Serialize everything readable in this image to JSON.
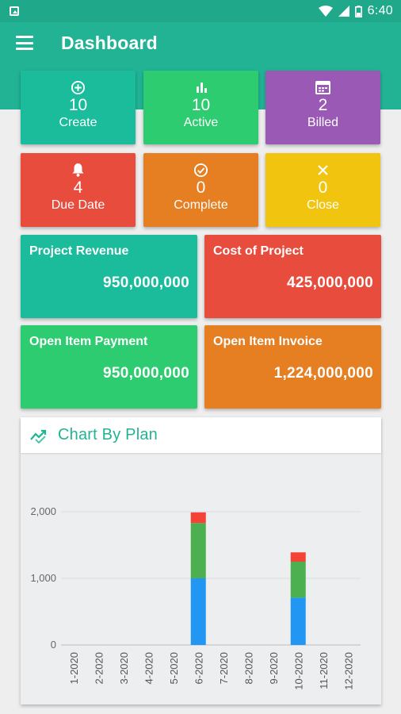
{
  "status_bar": {
    "time": "6:40",
    "icons": [
      "app-notification-icon",
      "wifi-icon",
      "signal-icon",
      "battery-icon"
    ]
  },
  "app_bar": {
    "title": "Dashboard",
    "menu_icon": "hamburger-menu-icon"
  },
  "colors": {
    "primary": "#21b394",
    "teal": "#1abc9c",
    "green": "#2ecc71",
    "purple": "#9b59b6",
    "red": "#e74c3c",
    "orange": "#e67e22",
    "yellow": "#f1c40f"
  },
  "stats": [
    {
      "icon": "add-circle-icon",
      "value": "10",
      "label": "Create"
    },
    {
      "icon": "bar-chart-icon",
      "value": "10",
      "label": "Active"
    },
    {
      "icon": "calendar-icon",
      "value": "2",
      "label": "Billed"
    },
    {
      "icon": "bell-icon",
      "value": "4",
      "label": "Due Date"
    },
    {
      "icon": "check-circle-icon",
      "value": "0",
      "label": "Complete"
    },
    {
      "icon": "close-icon",
      "value": "0",
      "label": "Close"
    }
  ],
  "money": [
    {
      "label": "Project Revenue",
      "value": "950,000,000"
    },
    {
      "label": "Cost of Project",
      "value": "425,000,000"
    },
    {
      "label": "Open Item Payment",
      "value": "950,000,000"
    },
    {
      "label": "Open Item Invoice",
      "value": "1,224,000,000"
    }
  ],
  "chart": {
    "title": "Chart By Plan",
    "icon": "trending-icon"
  },
  "chart_data": {
    "type": "bar",
    "stacked": true,
    "categories": [
      "1-2020",
      "2-2020",
      "3-2020",
      "4-2020",
      "5-2020",
      "6-2020",
      "7-2020",
      "8-2020",
      "9-2020",
      "10-2020",
      "11-2020",
      "12-2020"
    ],
    "series": [
      {
        "color": "#2196f3",
        "values": [
          0,
          0,
          0,
          0,
          0,
          1000,
          0,
          0,
          0,
          710,
          0,
          0
        ]
      },
      {
        "color": "#4caf50",
        "values": [
          0,
          0,
          0,
          0,
          0,
          830,
          0,
          0,
          0,
          540,
          0,
          0
        ]
      },
      {
        "color": "#f44336",
        "values": [
          0,
          0,
          0,
          0,
          0,
          160,
          0,
          0,
          0,
          140,
          0,
          0
        ]
      }
    ],
    "yticks": [
      "0",
      "1,000",
      "2,000"
    ],
    "ytick_values": [
      0,
      1000,
      2000
    ],
    "ylim": [
      0,
      2000
    ],
    "grid": true
  }
}
